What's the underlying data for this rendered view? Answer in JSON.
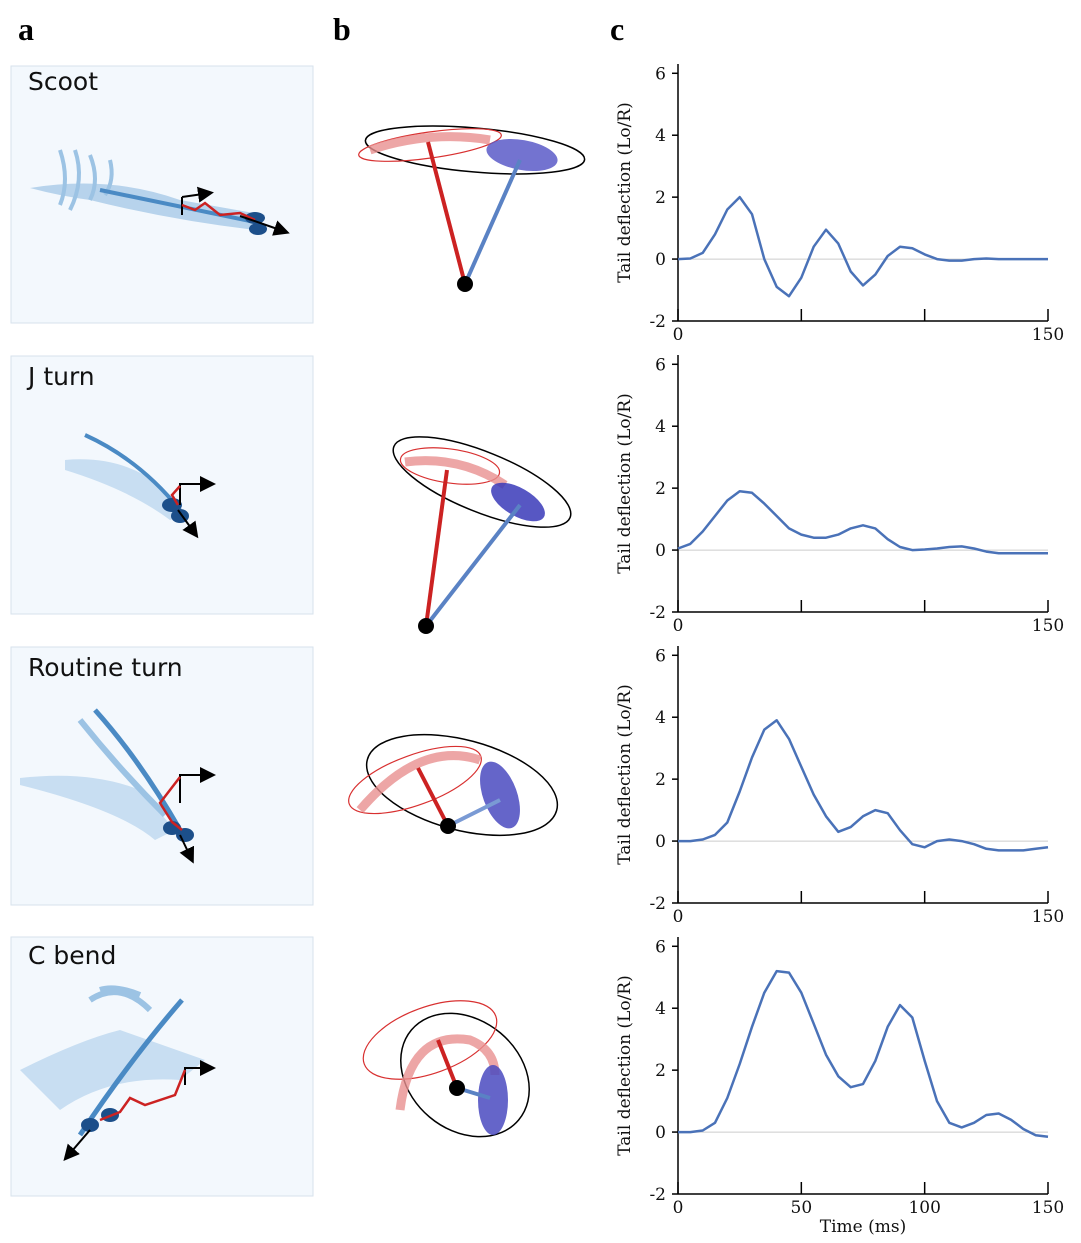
{
  "panel_labels": [
    "a",
    "b",
    "c"
  ],
  "behaviors": [
    "Scoot",
    "J turn",
    "Routine turn",
    "C bend"
  ],
  "chart_data": [
    {
      "type": "line",
      "ylabel": "Tail deflection (Lo/R)",
      "x": [
        0,
        5,
        10,
        15,
        20,
        25,
        30,
        35,
        40,
        45,
        50,
        55,
        60,
        65,
        70,
        75,
        80,
        85,
        90,
        95,
        100,
        105,
        110,
        115,
        120,
        125,
        130,
        135,
        140,
        145,
        150
      ],
      "series": [
        {
          "color": "#4a72b8",
          "values": [
            0,
            0.02,
            0.2,
            0.8,
            1.6,
            2.0,
            1.45,
            0,
            -0.9,
            -1.2,
            -0.6,
            0.4,
            0.95,
            0.5,
            -0.4,
            -0.85,
            -0.5,
            0.1,
            0.4,
            0.35,
            0.15,
            0,
            -0.05,
            -0.05,
            0,
            0.02,
            0,
            0,
            0,
            0,
            0
          ]
        }
      ],
      "xlim": [
        0,
        150
      ],
      "ylim": [
        -2,
        6.3
      ],
      "xticks": [
        0,
        {
          "value": 50,
          "label": null
        },
        {
          "value": 100,
          "label": null
        },
        150
      ],
      "yticks": [
        -2,
        0,
        2,
        4,
        6
      ],
      "reference_line": 0
    },
    {
      "type": "line",
      "ylabel": "Tail deflection (Lo/R)",
      "x": [
        0,
        5,
        10,
        15,
        20,
        25,
        30,
        35,
        40,
        45,
        50,
        55,
        60,
        65,
        70,
        75,
        80,
        85,
        90,
        95,
        100,
        105,
        110,
        115,
        120,
        125,
        130,
        135,
        140,
        145,
        150
      ],
      "series": [
        {
          "color": "#4a72b8",
          "values": [
            0.05,
            0.2,
            0.6,
            1.1,
            1.6,
            1.9,
            1.85,
            1.5,
            1.1,
            0.7,
            0.5,
            0.4,
            0.4,
            0.5,
            0.7,
            0.8,
            0.7,
            0.35,
            0.1,
            0,
            0.02,
            0.05,
            0.1,
            0.12,
            0.05,
            -0.05,
            -0.1,
            -0.1,
            -0.1,
            -0.1,
            -0.1
          ]
        }
      ],
      "xlim": [
        0,
        150
      ],
      "ylim": [
        -2,
        6.3
      ],
      "xticks": [
        0,
        {
          "value": 50,
          "label": null
        },
        {
          "value": 100,
          "label": null
        },
        150
      ],
      "yticks": [
        -2,
        0,
        2,
        4,
        6
      ],
      "reference_line": 0
    },
    {
      "type": "line",
      "ylabel": "Tail deflection (Lo/R)",
      "x": [
        0,
        5,
        10,
        15,
        20,
        25,
        30,
        35,
        40,
        45,
        50,
        55,
        60,
        65,
        70,
        75,
        80,
        85,
        90,
        95,
        100,
        105,
        110,
        115,
        120,
        125,
        130,
        135,
        140,
        145,
        150
      ],
      "series": [
        {
          "color": "#4a72b8",
          "values": [
            0,
            0,
            0.05,
            0.2,
            0.6,
            1.6,
            2.7,
            3.6,
            3.9,
            3.3,
            2.4,
            1.5,
            0.8,
            0.3,
            0.45,
            0.8,
            1.0,
            0.9,
            0.35,
            -0.1,
            -0.2,
            0,
            0.05,
            0,
            -0.1,
            -0.25,
            -0.3,
            -0.3,
            -0.3,
            -0.25,
            -0.2
          ]
        }
      ],
      "xlim": [
        0,
        150
      ],
      "ylim": [
        -2,
        6.3
      ],
      "xticks": [
        0,
        {
          "value": 50,
          "label": null
        },
        {
          "value": 100,
          "label": null
        },
        150
      ],
      "yticks": [
        -2,
        0,
        2,
        4,
        6
      ],
      "reference_line": 0
    },
    {
      "type": "line",
      "ylabel": "Tail deflection (Lo/R)",
      "xlabel": "Time (ms)",
      "x": [
        0,
        5,
        10,
        15,
        20,
        25,
        30,
        35,
        40,
        45,
        50,
        55,
        60,
        65,
        70,
        75,
        80,
        85,
        90,
        95,
        100,
        105,
        110,
        115,
        120,
        125,
        130,
        135,
        140,
        145,
        150
      ],
      "series": [
        {
          "color": "#4a72b8",
          "values": [
            0,
            0,
            0.05,
            0.3,
            1.1,
            2.2,
            3.4,
            4.5,
            5.2,
            5.15,
            4.5,
            3.5,
            2.5,
            1.8,
            1.45,
            1.55,
            2.3,
            3.4,
            4.1,
            3.7,
            2.3,
            1.0,
            0.3,
            0.15,
            0.3,
            0.55,
            0.6,
            0.4,
            0.1,
            -0.1,
            -0.15
          ]
        }
      ],
      "xlim": [
        0,
        150
      ],
      "ylim": [
        -2,
        6.3
      ],
      "xticks": [
        0,
        50,
        100,
        150
      ],
      "yticks": [
        -2,
        0,
        2,
        4,
        6
      ],
      "reference_line": 0
    }
  ]
}
